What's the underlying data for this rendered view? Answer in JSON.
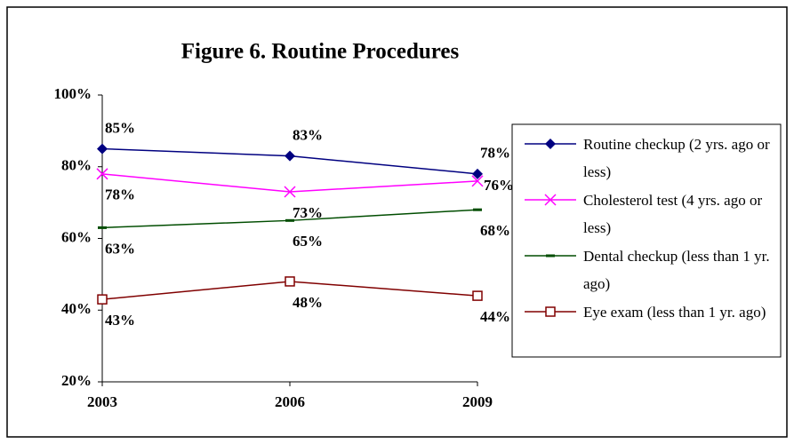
{
  "chart_data": {
    "type": "line",
    "title": "Figure 6. Routine Procedures",
    "categories": [
      "2003",
      "2006",
      "2009"
    ],
    "series": [
      {
        "name": "Routine checkup (2 yrs. ago or less)",
        "color": "#000080",
        "marker": "diamond",
        "values": [
          85,
          83,
          78
        ],
        "value_labels": [
          "85%",
          "83%",
          "78%"
        ]
      },
      {
        "name": "Cholesterol test (4 yrs. ago or less)",
        "color": "#ff00ff",
        "marker": "x",
        "values": [
          78,
          73,
          76
        ],
        "value_labels": [
          "78%",
          "73%",
          "76%"
        ]
      },
      {
        "name": "Dental checkup (less than 1 yr. ago)",
        "color": "#004d00",
        "marker": "dash",
        "values": [
          63,
          65,
          68
        ],
        "value_labels": [
          "63%",
          "65%",
          "68%"
        ]
      },
      {
        "name": "Eye exam (less than 1 yr. ago)",
        "color": "#800000",
        "marker": "square",
        "values": [
          43,
          48,
          44
        ],
        "value_labels": [
          "43%",
          "48%",
          "44%"
        ]
      }
    ],
    "ylim": [
      20,
      100
    ],
    "yticks": [
      {
        "value": 20,
        "label": "20%"
      },
      {
        "value": 40,
        "label": "40%"
      },
      {
        "value": 60,
        "label": "60%"
      },
      {
        "value": 80,
        "label": "80%"
      },
      {
        "value": 100,
        "label": "100%"
      }
    ],
    "legend": "right"
  }
}
